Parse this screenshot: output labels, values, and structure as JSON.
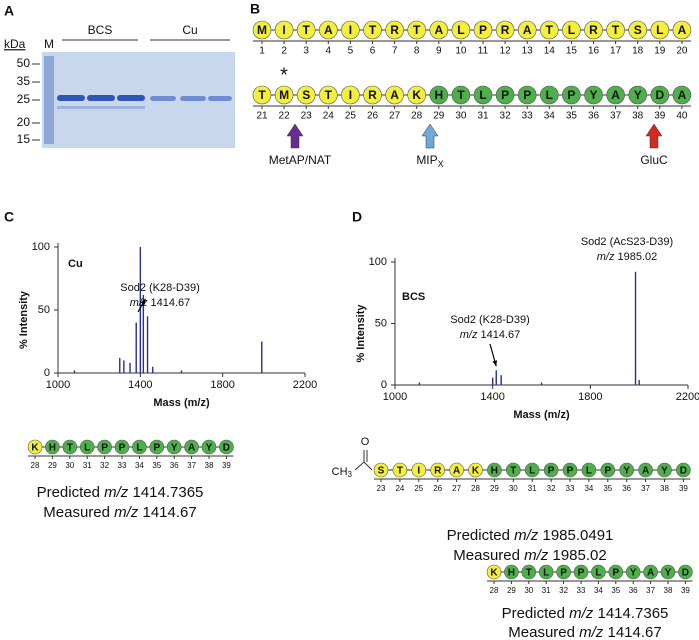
{
  "panel_a": {
    "label": "A",
    "unit": "kDa",
    "marker_lane": "M",
    "ladder": [
      50,
      35,
      25,
      20,
      15
    ],
    "groups": [
      "BCS",
      "Cu"
    ]
  },
  "panel_b": {
    "label": "B",
    "star": "*",
    "row1": {
      "residues": [
        "M",
        "I",
        "T",
        "A",
        "I",
        "T",
        "R",
        "T",
        "A",
        "L",
        "P",
        "R",
        "A",
        "T",
        "L",
        "R",
        "T",
        "S",
        "L",
        "A"
      ],
      "positions": [
        1,
        2,
        3,
        4,
        5,
        6,
        7,
        8,
        9,
        10,
        11,
        12,
        13,
        14,
        15,
        16,
        17,
        18,
        19,
        20
      ],
      "colors": [
        "#f4ee3c",
        "#f4ee3c",
        "#f4ee3c",
        "#f4ee3c",
        "#f4ee3c",
        "#f4ee3c",
        "#f4ee3c",
        "#f4ee3c",
        "#f4ee3c",
        "#f4ee3c",
        "#f4ee3c",
        "#f4ee3c",
        "#f4ee3c",
        "#f4ee3c",
        "#f4ee3c",
        "#f4ee3c",
        "#f4ee3c",
        "#f4ee3c",
        "#f4ee3c",
        "#f4ee3c"
      ]
    },
    "row2": {
      "residues": [
        "T",
        "M",
        "S",
        "T",
        "I",
        "R",
        "A",
        "K",
        "H",
        "T",
        "L",
        "P",
        "P",
        "L",
        "P",
        "Y",
        "A",
        "Y",
        "D",
        "A"
      ],
      "positions": [
        21,
        22,
        23,
        24,
        25,
        26,
        27,
        28,
        29,
        30,
        31,
        32,
        33,
        34,
        35,
        36,
        37,
        38,
        39,
        40
      ],
      "colors": [
        "#f4ee3c",
        "#f4ee3c",
        "#f4ee3c",
        "#f4ee3c",
        "#f4ee3c",
        "#f4ee3c",
        "#f4ee3c",
        "#f4ee3c",
        "#4db04a",
        "#4db04a",
        "#4db04a",
        "#4db04a",
        "#4db04a",
        "#4db04a",
        "#4db04a",
        "#4db04a",
        "#4db04a",
        "#4db04a",
        "#4db04a",
        "#4db04a"
      ]
    },
    "cleavages": [
      {
        "text": "MetAP/NAT",
        "color": "#6a2c91"
      },
      {
        "text": "MIP",
        "subscript": "X",
        "color": "#6fa8dc"
      },
      {
        "text": "GluC",
        "color": "#d02a22"
      }
    ]
  },
  "panel_c": {
    "label": "C",
    "peptide": {
      "residues": [
        "K",
        "H",
        "T",
        "L",
        "P",
        "P",
        "L",
        "P",
        "Y",
        "A",
        "Y",
        "D"
      ],
      "positions": [
        28,
        29,
        30,
        31,
        32,
        33,
        34,
        35,
        36,
        37,
        38,
        39
      ],
      "colors": [
        "#f4ee3c",
        "#4db04a",
        "#4db04a",
        "#4db04a",
        "#4db04a",
        "#4db04a",
        "#4db04a",
        "#4db04a",
        "#4db04a",
        "#4db04a",
        "#4db04a",
        "#4db04a"
      ]
    },
    "predicted": {
      "label": "Predicted",
      "unit": "m/z",
      "value": "1414.7365"
    },
    "measured": {
      "label": "Measured",
      "unit": "m/z",
      "value": "1414.67"
    }
  },
  "panel_d": {
    "label": "D",
    "acetyl": {
      "oxygen": "O",
      "methyl": "CH",
      "subscript": "3"
    },
    "peptides": [
      {
        "residues": [
          "S",
          "T",
          "I",
          "R",
          "A",
          "K",
          "H",
          "T",
          "L",
          "P",
          "P",
          "L",
          "P",
          "Y",
          "A",
          "Y",
          "D"
        ],
        "positions": [
          23,
          24,
          25,
          26,
          27,
          28,
          29,
          30,
          31,
          32,
          33,
          34,
          35,
          36,
          37,
          38,
          39
        ],
        "colors": [
          "#f4ee3c",
          "#f4ee3c",
          "#f4ee3c",
          "#f4ee3c",
          "#f4ee3c",
          "#f4ee3c",
          "#4db04a",
          "#4db04a",
          "#4db04a",
          "#4db04a",
          "#4db04a",
          "#4db04a",
          "#4db04a",
          "#4db04a",
          "#4db04a",
          "#4db04a",
          "#4db04a"
        ],
        "predicted": {
          "label": "Predicted",
          "unit": "m/z",
          "value": "1985.0491"
        },
        "measured": {
          "label": "Measured",
          "unit": "m/z",
          "value": "1985.02"
        }
      },
      {
        "residues": [
          "K",
          "H",
          "T",
          "L",
          "P",
          "P",
          "L",
          "P",
          "Y",
          "A",
          "Y",
          "D"
        ],
        "positions": [
          28,
          29,
          30,
          31,
          32,
          33,
          34,
          35,
          36,
          37,
          38,
          39
        ],
        "colors": [
          "#f4ee3c",
          "#4db04a",
          "#4db04a",
          "#4db04a",
          "#4db04a",
          "#4db04a",
          "#4db04a",
          "#4db04a",
          "#4db04a",
          "#4db04a",
          "#4db04a",
          "#4db04a"
        ],
        "predicted": {
          "label": "Predicted",
          "unit": "m/z",
          "value": "1414.7365"
        },
        "measured": {
          "label": "Measured",
          "unit": "m/z",
          "value": "1414.67"
        }
      }
    ]
  },
  "chart_data": [
    {
      "type": "stem",
      "tag": "Cu",
      "xlabel": "Mass (m/z)",
      "ylabel": "% Intensity",
      "color": "#2b2f8a",
      "x": [
        1080,
        1300,
        1320,
        1350,
        1380,
        1400,
        1414.67,
        1435,
        1460,
        1600,
        1990
      ],
      "values": [
        2,
        12,
        10,
        8,
        40,
        100,
        62,
        45,
        5,
        2,
        25
      ],
      "xlim": [
        1000,
        2200
      ],
      "xticks": [
        1000,
        1400,
        1800,
        2200
      ],
      "ylim": [
        0,
        100
      ],
      "yticks": [
        0,
        50,
        100
      ],
      "annotations": [
        {
          "text": "Sod2 (K28-D39)",
          "unit": "m/z",
          "value": "1414.67"
        }
      ]
    },
    {
      "type": "stem",
      "tag": "BCS",
      "xlabel": "Mass (m/z)",
      "ylabel": "% Intensity",
      "color": "#2b2f8a",
      "x": [
        1100,
        1400,
        1414.67,
        1435,
        1600,
        1985.02,
        2000
      ],
      "values": [
        2,
        6,
        12,
        8,
        2,
        92,
        4
      ],
      "xlim": [
        1000,
        2200
      ],
      "xticks": [
        1000,
        1400,
        1800,
        2200
      ],
      "ylim": [
        0,
        100
      ],
      "yticks": [
        0,
        50,
        100
      ],
      "annotations": [
        {
          "text": "Sod2 (K28-D39)",
          "unit": "m/z",
          "value": "1414.67"
        },
        {
          "text": "Sod2 (AcS23-D39)",
          "unit": "m/z",
          "value": "1985.02"
        }
      ]
    }
  ]
}
